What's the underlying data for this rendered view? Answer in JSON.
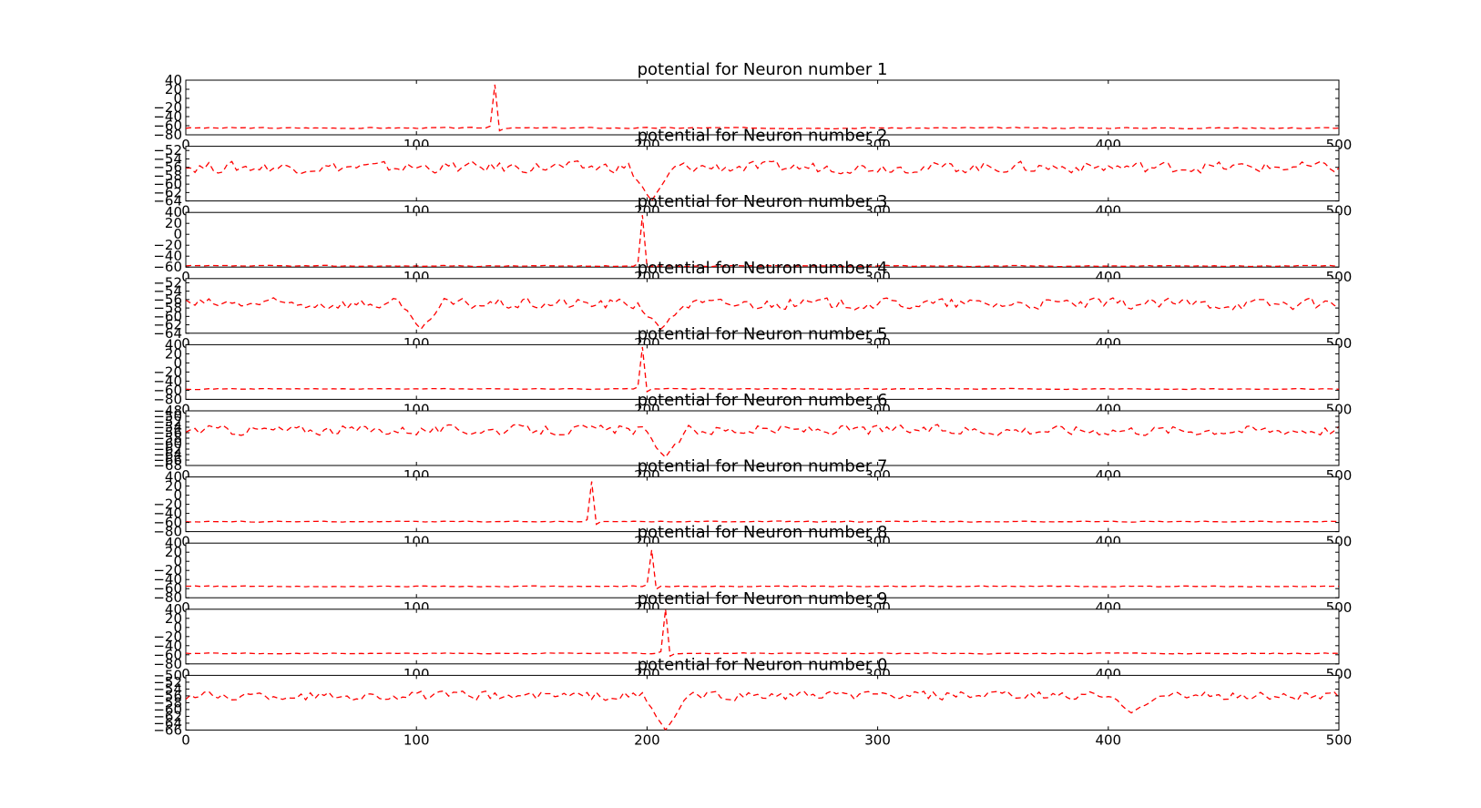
{
  "figure": {
    "background": "#ffffff",
    "line_color": "#ff0000",
    "line_style": "dashed"
  },
  "chart_data": [
    {
      "type": "line",
      "title": "potential for Neuron number 1",
      "xlim": [
        0,
        500
      ],
      "ylim": [
        -80,
        40
      ],
      "xticks": [
        "0",
        "100",
        "200",
        "300",
        "400",
        "500"
      ],
      "yticks": [
        "40",
        "20",
        "0",
        "−20",
        "−40",
        "−60",
        "−80"
      ],
      "base": -65,
      "jitter": 2,
      "smooth": 0.2,
      "spikes": [
        {
          "x": 133,
          "peak": 30
        }
      ],
      "dips": []
    },
    {
      "type": "line",
      "title": "potential for Neuron number 2",
      "xlim": [
        0,
        500
      ],
      "ylim": [
        -64,
        -51
      ],
      "xticks": [
        "0",
        "100",
        "200",
        "300",
        "400",
        "500"
      ],
      "yticks": [
        "−52",
        "−54",
        "−56",
        "−58",
        "−60",
        "−62",
        "−64"
      ],
      "base": -56,
      "jitter": 1.6,
      "smooth": 0.45,
      "spikes": [],
      "dips": [
        {
          "x": 202,
          "depth": -64
        }
      ]
    },
    {
      "type": "line",
      "title": "potential for Neuron number 3",
      "xlim": [
        0,
        500
      ],
      "ylim": [
        -60,
        40
      ],
      "xticks": [
        "0",
        "100",
        "200",
        "300",
        "400",
        "500"
      ],
      "yticks": [
        "40",
        "20",
        "0",
        "−20",
        "−40",
        "−60"
      ],
      "base": -58,
      "jitter": 1.5,
      "smooth": 0.2,
      "spikes": [
        {
          "x": 197,
          "peak": 35
        }
      ],
      "dips": []
    },
    {
      "type": "line",
      "title": "potential for Neuron number 4",
      "xlim": [
        0,
        500
      ],
      "ylim": [
        -64,
        -51
      ],
      "xticks": [
        "0",
        "100",
        "200",
        "300",
        "400",
        "500"
      ],
      "yticks": [
        "−52",
        "−54",
        "−56",
        "−58",
        "−60",
        "−62",
        "−64"
      ],
      "base": -57,
      "jitter": 1.6,
      "smooth": 0.45,
      "spikes": [],
      "dips": [
        {
          "x": 102,
          "depth": -63
        },
        {
          "x": 206,
          "depth": -63
        }
      ]
    },
    {
      "type": "line",
      "title": "potential for Neuron number 5",
      "xlim": [
        0,
        500
      ],
      "ylim": [
        -80,
        40
      ],
      "xticks": [
        "0",
        "100",
        "200",
        "300",
        "400",
        "500"
      ],
      "yticks": [
        "40",
        "20",
        "0",
        "−20",
        "−40",
        "−60",
        "−80"
      ],
      "base": -57,
      "jitter": 1.5,
      "smooth": 0.2,
      "spikes": [
        {
          "x": 198,
          "peak": 35
        }
      ],
      "dips": []
    },
    {
      "type": "line",
      "title": "potential for Neuron number 6",
      "xlim": [
        0,
        500
      ],
      "ylim": [
        -68,
        -48
      ],
      "xticks": [
        "0",
        "100",
        "200",
        "300",
        "400",
        "500"
      ],
      "yticks": [
        "−48",
        "−50",
        "−52",
        "−54",
        "−56",
        "−58",
        "−60",
        "−62",
        "−64",
        "−66",
        "−68"
      ],
      "base": -55,
      "jitter": 2.2,
      "smooth": 0.45,
      "spikes": [],
      "dips": [
        {
          "x": 208,
          "depth": -65
        }
      ]
    },
    {
      "type": "line",
      "title": "potential for Neuron number 7",
      "xlim": [
        0,
        500
      ],
      "ylim": [
        -80,
        40
      ],
      "xticks": [
        "0",
        "100",
        "200",
        "300",
        "400",
        "500"
      ],
      "yticks": [
        "40",
        "20",
        "0",
        "−20",
        "−40",
        "−60",
        "−80"
      ],
      "base": -58,
      "jitter": 1.5,
      "smooth": 0.2,
      "spikes": [
        {
          "x": 176,
          "peak": 30
        }
      ],
      "dips": []
    },
    {
      "type": "line",
      "title": "potential for Neuron number 8",
      "xlim": [
        0,
        500
      ],
      "ylim": [
        -80,
        40
      ],
      "xticks": [
        "0",
        "100",
        "200",
        "300",
        "400",
        "500"
      ],
      "yticks": [
        "40",
        "20",
        "0",
        "−20",
        "−40",
        "−60",
        "−80"
      ],
      "base": -55,
      "jitter": 1.5,
      "smooth": 0.2,
      "spikes": [
        {
          "x": 201,
          "peak": 25
        }
      ],
      "dips": []
    },
    {
      "type": "line",
      "title": "potential for Neuron number 9",
      "xlim": [
        0,
        500
      ],
      "ylim": [
        -80,
        40
      ],
      "xticks": [
        "0",
        "100",
        "200",
        "300",
        "400",
        "500"
      ],
      "yticks": [
        "40",
        "20",
        "0",
        "−20",
        "−40",
        "−60",
        "−80"
      ],
      "base": -57,
      "jitter": 1.5,
      "smooth": 0.2,
      "spikes": [
        {
          "x": 207,
          "peak": 40
        }
      ],
      "dips": []
    },
    {
      "type": "line",
      "title": "potential for Neuron number 0",
      "xlim": [
        0,
        500
      ],
      "ylim": [
        -66,
        -50
      ],
      "xticks": [
        "0",
        "100",
        "200",
        "300",
        "400",
        "500"
      ],
      "yticks": [
        "−50",
        "−52",
        "−54",
        "−56",
        "−58",
        "−60",
        "−62",
        "−64",
        "−66"
      ],
      "base": -56,
      "jitter": 1.6,
      "smooth": 0.45,
      "spikes": [],
      "dips": [
        {
          "x": 208,
          "depth": -66
        },
        {
          "x": 410,
          "depth": -61
        }
      ]
    }
  ]
}
